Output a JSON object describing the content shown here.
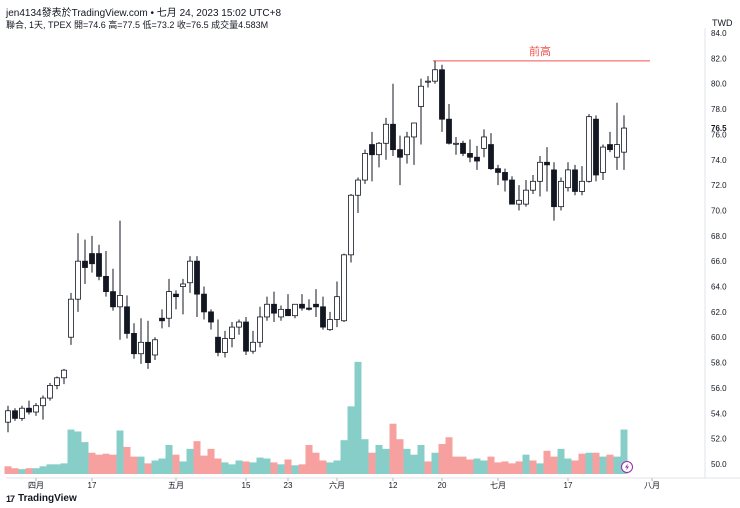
{
  "header": {
    "line1": "jen4134發表於TradingView.com • 七月 24, 2023 15:02 UTC+8",
    "line2": "聯合, 1天, TPEX  開=74.6  高=77.5  低=73.2  收=76.5  成交量4.583M"
  },
  "currency": "TWD",
  "logo": {
    "mark": "17",
    "text": "TradingView"
  },
  "colors": {
    "up": "#26a69a",
    "down": "#ef5350",
    "candle_down": "#131722",
    "candle_up": "#ffffff",
    "annotation": "#ef5350"
  },
  "icon": "lightning-icon",
  "chart_data": {
    "type": "candlestick",
    "title": "",
    "ylim": [
      49,
      85
    ],
    "y_ticks": [
      "84.0",
      "82.0",
      "80.0",
      "78.0",
      "76.0",
      "74.0",
      "72.0",
      "70.0",
      "68.0",
      "66.0",
      "64.0",
      "62.0",
      "60.0",
      "58.0",
      "56.0",
      "54.0",
      "52.0",
      "50.0"
    ],
    "x_ticks": [
      {
        "label": "四月",
        "index": 4
      },
      {
        "label": "17",
        "index": 12
      },
      {
        "label": "五月",
        "index": 24
      },
      {
        "label": "15",
        "index": 34
      },
      {
        "label": "23",
        "index": 40
      },
      {
        "label": "六月",
        "index": 47
      },
      {
        "label": "12",
        "index": 55
      },
      {
        "label": "20",
        "index": 62
      },
      {
        "label": "七月",
        "index": 70
      },
      {
        "label": "17",
        "index": 80
      },
      {
        "label": "八月",
        "index": 92
      }
    ],
    "last_price": "76.5",
    "annotation": {
      "label": "前高",
      "value": 81.8
    },
    "candles": [
      [
        53.3,
        54.6,
        52.5,
        54.2,
        0.8,
        "down"
      ],
      [
        54.2,
        54.4,
        53.4,
        53.6,
        0.6,
        "down"
      ],
      [
        53.6,
        54.6,
        53.4,
        54.4,
        0.5,
        "up"
      ],
      [
        54.4,
        55.0,
        53.9,
        54.1,
        0.6,
        "down"
      ],
      [
        54.1,
        54.8,
        53.8,
        54.6,
        0.6,
        "up"
      ],
      [
        54.6,
        55.4,
        53.5,
        55.2,
        0.8,
        "up"
      ],
      [
        55.2,
        56.4,
        55.0,
        56.2,
        1.0,
        "up"
      ],
      [
        56.2,
        56.9,
        55.9,
        56.8,
        1.0,
        "up"
      ],
      [
        56.8,
        57.5,
        56.3,
        57.4,
        1.1,
        "up"
      ],
      [
        60.0,
        63.5,
        59.4,
        63.0,
        4.6,
        "up"
      ],
      [
        63.0,
        68.2,
        62.0,
        66.0,
        4.4,
        "up"
      ],
      [
        66.0,
        67.7,
        64.2,
        65.5,
        3.3,
        "up"
      ],
      [
        66.6,
        68.0,
        65.1,
        65.8,
        2.2,
        "down"
      ],
      [
        66.6,
        67.3,
        64.5,
        64.8,
        2.0,
        "down"
      ],
      [
        64.8,
        66.8,
        63.2,
        63.6,
        2.1,
        "down"
      ],
      [
        63.6,
        65.4,
        62.1,
        62.4,
        2.0,
        "down"
      ],
      [
        62.4,
        69.2,
        59.8,
        63.3,
        4.5,
        "up"
      ],
      [
        62.4,
        63.3,
        59.9,
        60.3,
        2.8,
        "down"
      ],
      [
        60.3,
        61.1,
        58.3,
        58.7,
        1.8,
        "down"
      ],
      [
        58.7,
        61.5,
        57.9,
        59.6,
        1.8,
        "up"
      ],
      [
        59.6,
        61.3,
        57.5,
        58.0,
        1.1,
        "down"
      ],
      [
        58.6,
        60.0,
        58.2,
        59.8,
        1.4,
        "up"
      ],
      [
        61.5,
        62.2,
        60.7,
        61.3,
        1.6,
        "up"
      ],
      [
        61.5,
        64.6,
        60.8,
        63.6,
        3.0,
        "up"
      ],
      [
        63.4,
        63.7,
        62.2,
        63.2,
        2.0,
        "down"
      ],
      [
        64.0,
        64.6,
        61.8,
        64.2,
        1.3,
        "up"
      ],
      [
        64.3,
        66.4,
        63.5,
        66.0,
        2.6,
        "up"
      ],
      [
        66.0,
        66.4,
        61.6,
        63.4,
        3.4,
        "down"
      ],
      [
        63.4,
        64.0,
        61.4,
        62.0,
        1.9,
        "down"
      ],
      [
        62.0,
        62.2,
        60.6,
        61.2,
        2.6,
        "down"
      ],
      [
        60.0,
        61.4,
        58.5,
        58.8,
        1.6,
        "down"
      ],
      [
        58.8,
        60.5,
        58.4,
        59.9,
        1.2,
        "up"
      ],
      [
        59.9,
        61.2,
        59.2,
        60.8,
        1.0,
        "up"
      ],
      [
        60.8,
        61.4,
        60.2,
        61.2,
        1.4,
        "up"
      ],
      [
        61.2,
        61.6,
        58.6,
        58.9,
        1.3,
        "down"
      ],
      [
        58.9,
        60.5,
        58.7,
        59.6,
        1.2,
        "up"
      ],
      [
        59.6,
        62.4,
        59.2,
        61.6,
        1.7,
        "up"
      ],
      [
        61.6,
        63.2,
        61.3,
        62.6,
        1.6,
        "up"
      ],
      [
        62.6,
        63.6,
        61.2,
        61.9,
        1.2,
        "down"
      ],
      [
        61.6,
        62.5,
        61.3,
        62.2,
        1.0,
        "up"
      ],
      [
        62.2,
        63.4,
        61.8,
        61.7,
        1.5,
        "down"
      ],
      [
        61.7,
        62.6,
        61.5,
        62.6,
        0.9,
        "up"
      ],
      [
        62.6,
        63.4,
        62.1,
        62.3,
        1.0,
        "down"
      ],
      [
        62.3,
        63.0,
        62.1,
        62.2,
        3.0,
        "down"
      ],
      [
        62.6,
        63.8,
        61.6,
        62.4,
        2.2,
        "down"
      ],
      [
        62.4,
        63.2,
        60.6,
        60.8,
        1.4,
        "down"
      ],
      [
        60.6,
        62.0,
        60.5,
        61.4,
        1.2,
        "up"
      ],
      [
        61.4,
        64.4,
        60.8,
        63.2,
        1.4,
        "up"
      ],
      [
        61.3,
        66.6,
        61.2,
        66.5,
        3.5,
        "up"
      ],
      [
        66.5,
        71.3,
        65.9,
        71.2,
        7.0,
        "up"
      ],
      [
        71.2,
        72.6,
        69.8,
        72.4,
        11.6,
        "up"
      ],
      [
        72.4,
        74.8,
        72.1,
        74.5,
        3.6,
        "up"
      ],
      [
        75.2,
        76.2,
        72.3,
        74.4,
        2.2,
        "down"
      ],
      [
        74.4,
        75.4,
        73.4,
        75.3,
        3.0,
        "up"
      ],
      [
        75.3,
        77.3,
        74.0,
        76.8,
        2.6,
        "up"
      ],
      [
        76.8,
        80.0,
        74.3,
        74.8,
        5.2,
        "down"
      ],
      [
        74.8,
        75.9,
        72.0,
        74.2,
        3.6,
        "down"
      ],
      [
        74.4,
        76.2,
        73.7,
        75.8,
        2.6,
        "up"
      ],
      [
        75.8,
        76.8,
        73.6,
        76.9,
        2.0,
        "up"
      ],
      [
        78.2,
        80.4,
        75.2,
        79.8,
        3.0,
        "up"
      ],
      [
        80.2,
        80.6,
        79.7,
        80.2,
        1.3,
        "down"
      ],
      [
        80.2,
        81.8,
        80.0,
        81.1,
        2.2,
        "up"
      ],
      [
        81.1,
        81.5,
        76.2,
        77.2,
        3.1,
        "down"
      ],
      [
        77.2,
        78.4,
        75.2,
        75.3,
        3.8,
        "down"
      ],
      [
        75.3,
        75.8,
        74.4,
        75.3,
        1.8,
        "down"
      ],
      [
        75.3,
        75.5,
        74.3,
        74.5,
        1.8,
        "down"
      ],
      [
        74.5,
        75.6,
        73.8,
        74.2,
        1.5,
        "down"
      ],
      [
        74.2,
        75.1,
        73.2,
        73.9,
        1.6,
        "up"
      ],
      [
        74.9,
        76.4,
        74.2,
        75.8,
        1.4,
        "up"
      ],
      [
        75.2,
        76.1,
        73.2,
        73.3,
        1.8,
        "down"
      ],
      [
        73.3,
        73.6,
        72.0,
        73.0,
        1.2,
        "down"
      ],
      [
        73.0,
        73.3,
        71.5,
        72.4,
        1.3,
        "down"
      ],
      [
        72.4,
        72.7,
        70.5,
        70.5,
        1.1,
        "down"
      ],
      [
        70.5,
        72.0,
        70.0,
        70.8,
        1.3,
        "down"
      ],
      [
        70.5,
        72.4,
        70.3,
        71.6,
        2.0,
        "up"
      ],
      [
        71.6,
        72.8,
        71.3,
        72.3,
        1.4,
        "down"
      ],
      [
        72.3,
        74.3,
        71.1,
        73.8,
        1.1,
        "up"
      ],
      [
        73.8,
        75.0,
        71.5,
        73.6,
        2.4,
        "down"
      ],
      [
        73.2,
        73.8,
        69.2,
        70.3,
        1.8,
        "down"
      ],
      [
        70.3,
        72.6,
        70.0,
        72.3,
        2.6,
        "up"
      ],
      [
        71.8,
        73.8,
        71.5,
        73.2,
        1.6,
        "up"
      ],
      [
        73.2,
        73.6,
        71.2,
        71.5,
        1.4,
        "down"
      ],
      [
        71.5,
        73.5,
        71.2,
        72.3,
        2.1,
        "down"
      ],
      [
        72.3,
        77.6,
        72.2,
        77.4,
        2.2,
        "up"
      ],
      [
        77.2,
        77.5,
        72.3,
        72.8,
        2.2,
        "down"
      ],
      [
        73.0,
        75.2,
        72.4,
        75.0,
        1.8,
        "up"
      ],
      [
        75.2,
        76.2,
        74.6,
        74.8,
        2.0,
        "down"
      ],
      [
        74.2,
        78.5,
        73.2,
        75.2,
        1.8,
        "up"
      ],
      [
        74.6,
        77.5,
        73.2,
        76.5,
        4.6,
        "up"
      ]
    ]
  }
}
